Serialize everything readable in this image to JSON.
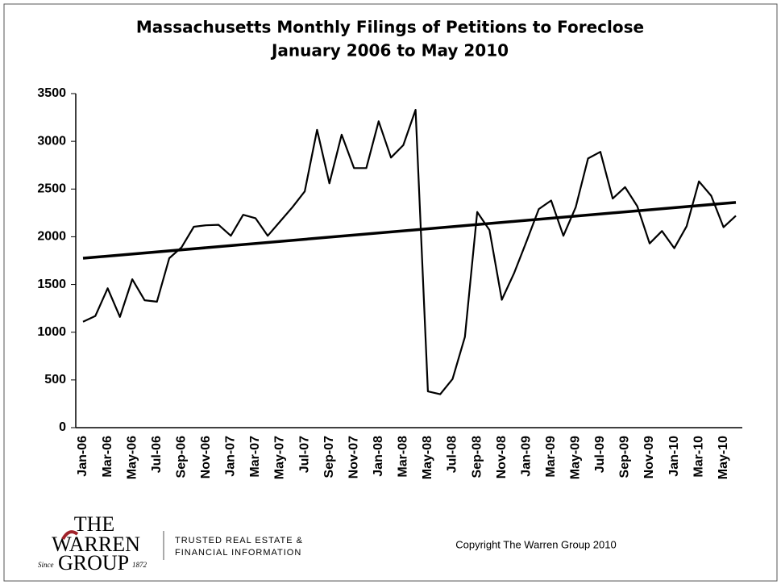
{
  "chart_data": {
    "type": "line",
    "title": "Massachusetts Monthly Filings of Petitions to Foreclose",
    "subtitle": "January 2006 to May 2010",
    "categories": [
      "Jan-06",
      null,
      "Mar-06",
      null,
      "May-06",
      null,
      "Jul-06",
      null,
      "Sep-06",
      null,
      "Nov-06",
      null,
      "Jan-07",
      null,
      "Mar-07",
      null,
      "May-07",
      null,
      "Jul-07",
      null,
      "Sep-07",
      null,
      "Nov-07",
      null,
      "Jan-08",
      null,
      "Mar-08",
      null,
      "May-08",
      null,
      "Jul-08",
      null,
      "Sep-08",
      null,
      "Nov-08",
      null,
      "Jan-09",
      null,
      "Mar-09",
      null,
      "May-09",
      null,
      "Jul-09",
      null,
      "Sep-09",
      null,
      "Nov-09",
      null,
      "Jan-10",
      null,
      "Mar-10",
      null,
      "May-10",
      null
    ],
    "values": [
      1110,
      1170,
      1460,
      1160,
      1555,
      1335,
      1320,
      1775,
      1890,
      2105,
      2120,
      2125,
      2010,
      2230,
      2195,
      2010,
      2160,
      2310,
      2475,
      3120,
      2560,
      3070,
      2720,
      2720,
      3210,
      2830,
      2960,
      3330,
      380,
      350,
      510,
      950,
      2260,
      2070,
      1340,
      1620,
      1950,
      2290,
      2380,
      2010,
      2310,
      2820,
      2890,
      2400,
      2520,
      2320,
      1930,
      2060,
      1880,
      2110,
      2580,
      2430,
      2100,
      2220
    ],
    "color": "#000000",
    "trend": [
      1775,
      2360
    ],
    "ylim": [
      0,
      3500
    ],
    "yticks": [
      0,
      500,
      1000,
      1500,
      2000,
      2500,
      3000,
      3500
    ],
    "grid": false
  },
  "footer": {
    "logo_the": "THE",
    "logo_warren": "WARREN",
    "logo_since": "Since",
    "logo_group": "GROUP",
    "logo_year": "1872",
    "tagline_1": "TRUSTED REAL ESTATE &",
    "tagline_2": "FINANCIAL INFORMATION",
    "copyright": "Copyright The Warren Group 2010"
  }
}
